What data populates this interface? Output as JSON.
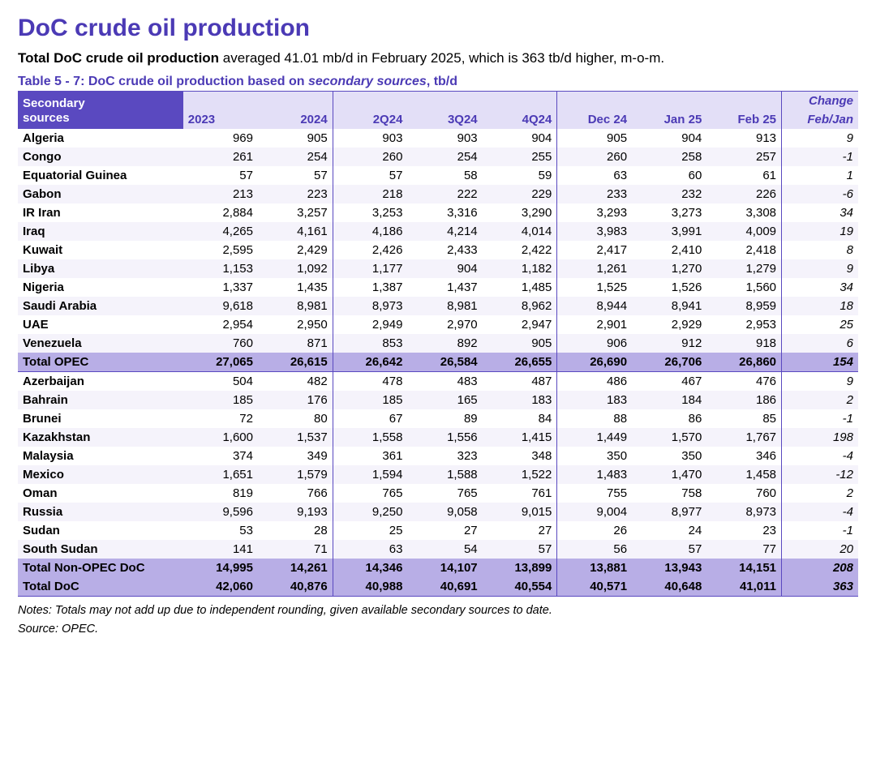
{
  "page": {
    "title": "DoC crude oil production",
    "subtitle_bold": "Total DoC crude oil production",
    "subtitle_rest": " averaged 41.01 mb/d in February 2025, which is 363 tb/d higher, m-o-m.",
    "caption_prefix": "Table 5 - 7: DoC crude oil production based on ",
    "caption_em": "secondary sources",
    "caption_suffix": ", tb/d",
    "notes_line1": "Notes: Totals may not add up due to independent rounding, given available secondary sources to date.",
    "notes_line2": "Source: OPEC."
  },
  "colors": {
    "brand": "#4b3ab5",
    "header_bg": "#5a49c0",
    "header_text": "#ffffff",
    "band_light": "#e3dff7",
    "row_even": "#f5f3fb",
    "row_odd": "#ffffff",
    "total_bg": "#b8aee6"
  },
  "table": {
    "header": {
      "label_line1": "Secondary",
      "label_line2": "sources",
      "cols": [
        "2023",
        "2024",
        "2Q24",
        "3Q24",
        "4Q24",
        "Dec 24",
        "Jan 25",
        "Feb 25"
      ],
      "change_line1": "Change",
      "change_line2": "Feb/Jan"
    },
    "groups": [
      {
        "rows": [
          {
            "label": "Algeria",
            "v": [
              "969",
              "905",
              "903",
              "903",
              "904",
              "905",
              "904",
              "913"
            ],
            "chg": "9"
          },
          {
            "label": "Congo",
            "v": [
              "261",
              "254",
              "260",
              "254",
              "255",
              "260",
              "258",
              "257"
            ],
            "chg": "-1"
          },
          {
            "label": "Equatorial Guinea",
            "v": [
              "57",
              "57",
              "57",
              "58",
              "59",
              "63",
              "60",
              "61"
            ],
            "chg": "1"
          },
          {
            "label": "Gabon",
            "v": [
              "213",
              "223",
              "218",
              "222",
              "229",
              "233",
              "232",
              "226"
            ],
            "chg": "-6"
          },
          {
            "label": "IR Iran",
            "v": [
              "2,884",
              "3,257",
              "3,253",
              "3,316",
              "3,290",
              "3,293",
              "3,273",
              "3,308"
            ],
            "chg": "34"
          },
          {
            "label": "Iraq",
            "v": [
              "4,265",
              "4,161",
              "4,186",
              "4,214",
              "4,014",
              "3,983",
              "3,991",
              "4,009"
            ],
            "chg": "19"
          },
          {
            "label": "Kuwait",
            "v": [
              "2,595",
              "2,429",
              "2,426",
              "2,433",
              "2,422",
              "2,417",
              "2,410",
              "2,418"
            ],
            "chg": "8"
          },
          {
            "label": "Libya",
            "v": [
              "1,153",
              "1,092",
              "1,177",
              "904",
              "1,182",
              "1,261",
              "1,270",
              "1,279"
            ],
            "chg": "9"
          },
          {
            "label": "Nigeria",
            "v": [
              "1,337",
              "1,435",
              "1,387",
              "1,437",
              "1,485",
              "1,525",
              "1,526",
              "1,560"
            ],
            "chg": "34"
          },
          {
            "label": "Saudi Arabia",
            "v": [
              "9,618",
              "8,981",
              "8,973",
              "8,981",
              "8,962",
              "8,944",
              "8,941",
              "8,959"
            ],
            "chg": "18"
          },
          {
            "label": "UAE",
            "v": [
              "2,954",
              "2,950",
              "2,949",
              "2,970",
              "2,947",
              "2,901",
              "2,929",
              "2,953"
            ],
            "chg": "25"
          },
          {
            "label": "Venezuela",
            "v": [
              "760",
              "871",
              "853",
              "892",
              "905",
              "906",
              "912",
              "918"
            ],
            "chg": "6"
          }
        ],
        "total": {
          "label": "Total  OPEC",
          "v": [
            "27,065",
            "26,615",
            "26,642",
            "26,584",
            "26,655",
            "26,690",
            "26,706",
            "26,860"
          ],
          "chg": "154"
        }
      },
      {
        "rows": [
          {
            "label": "Azerbaijan",
            "v": [
              "504",
              "482",
              "478",
              "483",
              "487",
              "486",
              "467",
              "476"
            ],
            "chg": "9"
          },
          {
            "label": "Bahrain",
            "v": [
              "185",
              "176",
              "185",
              "165",
              "183",
              "183",
              "184",
              "186"
            ],
            "chg": "2"
          },
          {
            "label": "Brunei",
            "v": [
              "72",
              "80",
              "67",
              "89",
              "84",
              "88",
              "86",
              "85"
            ],
            "chg": "-1"
          },
          {
            "label": "Kazakhstan",
            "v": [
              "1,600",
              "1,537",
              "1,558",
              "1,556",
              "1,415",
              "1,449",
              "1,570",
              "1,767"
            ],
            "chg": "198"
          },
          {
            "label": "Malaysia",
            "v": [
              "374",
              "349",
              "361",
              "323",
              "348",
              "350",
              "350",
              "346"
            ],
            "chg": "-4"
          },
          {
            "label": "Mexico",
            "v": [
              "1,651",
              "1,579",
              "1,594",
              "1,588",
              "1,522",
              "1,483",
              "1,470",
              "1,458"
            ],
            "chg": "-12"
          },
          {
            "label": "Oman",
            "v": [
              "819",
              "766",
              "765",
              "765",
              "761",
              "755",
              "758",
              "760"
            ],
            "chg": "2"
          },
          {
            "label": "Russia",
            "v": [
              "9,596",
              "9,193",
              "9,250",
              "9,058",
              "9,015",
              "9,004",
              "8,977",
              "8,973"
            ],
            "chg": "-4"
          },
          {
            "label": "Sudan",
            "v": [
              "53",
              "28",
              "25",
              "27",
              "27",
              "26",
              "24",
              "23"
            ],
            "chg": "-1"
          },
          {
            "label": "South Sudan",
            "v": [
              "141",
              "71",
              "63",
              "54",
              "57",
              "56",
              "57",
              "77"
            ],
            "chg": "20"
          }
        ],
        "total": {
          "label": "Total Non-OPEC DoC",
          "v": [
            "14,995",
            "14,261",
            "14,346",
            "14,107",
            "13,899",
            "13,881",
            "13,943",
            "14,151"
          ],
          "chg": "208"
        }
      }
    ],
    "grand_total": {
      "label": "Total DoC",
      "v": [
        "42,060",
        "40,876",
        "40,988",
        "40,691",
        "40,554",
        "40,571",
        "40,648",
        "41,011"
      ],
      "chg": "363"
    },
    "sep_before_cols": [
      2,
      5,
      8
    ]
  }
}
